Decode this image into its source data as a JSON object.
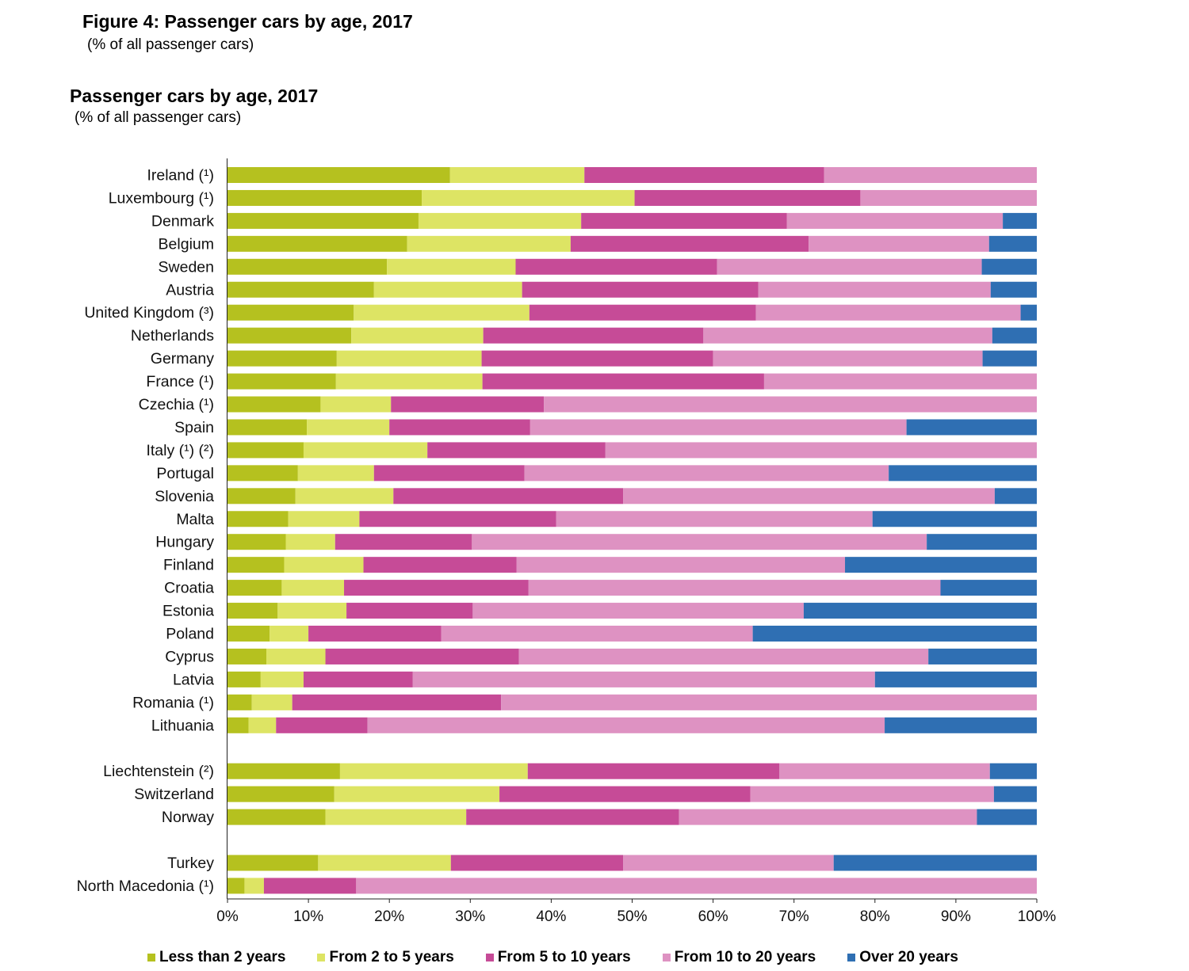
{
  "figure": {
    "title": "Figure 4: Passenger cars by age, 2017",
    "subtitle": "(% of all passenger cars)"
  },
  "chart_data": {
    "type": "bar",
    "orientation": "horizontal",
    "stacked": true,
    "title": "Passenger cars by age, 2017",
    "subtitle": "(% of all passenger cars)",
    "xlabel": "",
    "ylabel": "",
    "xlim": [
      0,
      100
    ],
    "x_ticks": [
      "0%",
      "10%",
      "20%",
      "30%",
      "40%",
      "50%",
      "60%",
      "70%",
      "80%",
      "90%",
      "100%"
    ],
    "legend_position": "bottom",
    "categories": [
      "Ireland (¹)",
      "Luxembourg  (¹)",
      "Denmark",
      "Belgium",
      "Sweden",
      "Austria",
      "United Kingdom (³)",
      "Netherlands",
      "Germany",
      "France  (¹)",
      "Czechia  (¹)",
      "Spain",
      "Italy  (¹) (²)",
      "Portugal",
      "Slovenia",
      "Malta",
      "Hungary",
      "Finland",
      "Croatia",
      "Estonia",
      "Poland",
      "Cyprus",
      "Latvia",
      "Romania  (¹)",
      "Lithuania",
      "",
      "Liechtenstein (²)",
      "Switzerland",
      "Norway",
      "",
      "Turkey",
      "North Macedonia  (¹)"
    ],
    "series": [
      {
        "name": "Less than 2 years",
        "color": "#b5c11f",
        "values": [
          27.5,
          24.0,
          23.6,
          22.2,
          19.7,
          18.1,
          15.6,
          15.3,
          13.5,
          13.4,
          11.5,
          9.8,
          9.4,
          8.7,
          8.4,
          7.5,
          7.2,
          7.0,
          6.7,
          6.2,
          5.2,
          4.8,
          4.1,
          3.0,
          2.6,
          null,
          13.9,
          13.2,
          12.1,
          null,
          11.2,
          2.1
        ]
      },
      {
        "name": "From 2 to 5 years",
        "color": "#dde464",
        "values": [
          16.6,
          26.3,
          20.1,
          20.2,
          15.9,
          18.3,
          21.7,
          16.3,
          17.9,
          18.1,
          8.7,
          10.2,
          15.3,
          9.4,
          12.1,
          8.8,
          6.1,
          9.8,
          7.7,
          8.5,
          4.8,
          7.3,
          5.3,
          5.0,
          3.4,
          null,
          23.2,
          20.4,
          17.4,
          null,
          16.4,
          2.4
        ]
      },
      {
        "name": "From 5 to 10 years",
        "color": "#c64b97",
        "values": [
          29.6,
          27.9,
          25.4,
          29.4,
          24.9,
          29.2,
          28.0,
          27.2,
          28.6,
          34.8,
          18.9,
          17.4,
          22.0,
          18.6,
          28.4,
          24.3,
          16.9,
          18.9,
          22.8,
          15.6,
          16.4,
          23.9,
          13.5,
          25.8,
          11.3,
          null,
          31.1,
          31.0,
          26.3,
          null,
          21.3,
          11.4
        ]
      },
      {
        "name": "From 10 to 20 years",
        "color": "#de92c2",
        "values": [
          26.3,
          21.8,
          26.7,
          22.3,
          32.7,
          28.7,
          32.7,
          35.7,
          33.3,
          33.7,
          60.9,
          46.5,
          53.3,
          45.0,
          45.9,
          39.1,
          56.2,
          40.6,
          50.9,
          40.9,
          38.5,
          50.6,
          57.1,
          66.2,
          63.9,
          null,
          26.0,
          30.1,
          36.8,
          null,
          26.0,
          84.1
        ]
      },
      {
        "name": "Over 20 years",
        "color": "#2f6fb3",
        "values": [
          0,
          0,
          4.2,
          5.9,
          6.8,
          5.7,
          2.0,
          5.5,
          6.7,
          0,
          0,
          16.1,
          0,
          18.3,
          5.2,
          20.3,
          13.6,
          23.7,
          11.9,
          28.8,
          35.1,
          13.4,
          20.0,
          0,
          18.8,
          null,
          5.8,
          5.3,
          7.4,
          null,
          25.1,
          0
        ]
      }
    ]
  }
}
